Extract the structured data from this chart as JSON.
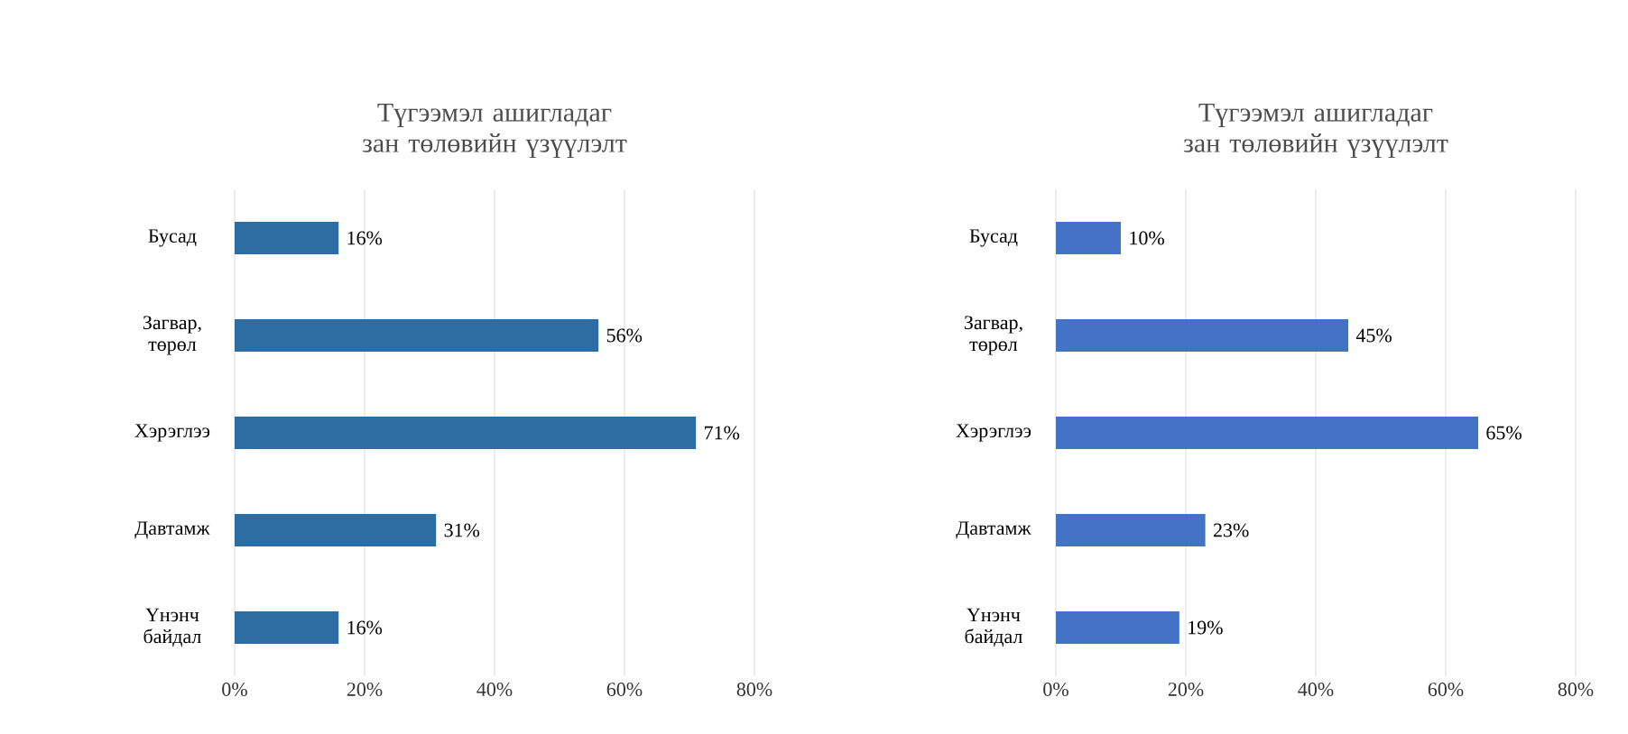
{
  "chart_data": [
    {
      "type": "bar",
      "orientation": "horizontal",
      "title": "Түгээмэл ашигладаг зан төлөвийн үзүүлэлт",
      "categories": [
        "Бусад",
        "Загвар, төрөл",
        "Хэрэглээ",
        "Давтамж",
        "Үнэнч байдал"
      ],
      "values": [
        16,
        56,
        71,
        31,
        16
      ],
      "value_labels": [
        "16%",
        "56%",
        "71%",
        "31%",
        "16%"
      ],
      "color": "#2e6ca4",
      "xlim": [
        0,
        80
      ],
      "xticks": [
        {
          "value": 0,
          "label": "0%"
        },
        {
          "value": 20,
          "label": "20%"
        },
        {
          "value": 40,
          "label": "40%"
        },
        {
          "value": 60,
          "label": "60%"
        },
        {
          "value": 80,
          "label": "80%"
        }
      ],
      "grid": "x"
    },
    {
      "type": "bar",
      "orientation": "horizontal",
      "title": "Түгээмэл ашигладаг зан төлөвийн үзүүлэлт",
      "categories": [
        "Бусад",
        "Загвар, төрөл",
        "Хэрэглээ",
        "Давтамж",
        "Үнэнч байдал"
      ],
      "values": [
        10,
        45,
        65,
        23,
        19
      ],
      "value_labels": [
        "10%",
        "45%",
        "65%",
        "23%",
        "19%"
      ],
      "color": "#4472c4",
      "xlim": [
        0,
        80
      ],
      "xticks": [
        {
          "value": 0,
          "label": "0%"
        },
        {
          "value": 20,
          "label": "20%"
        },
        {
          "value": 40,
          "label": "40%"
        },
        {
          "value": 60,
          "label": "60%"
        },
        {
          "value": 80,
          "label": "80%"
        }
      ],
      "grid": "x"
    }
  ]
}
